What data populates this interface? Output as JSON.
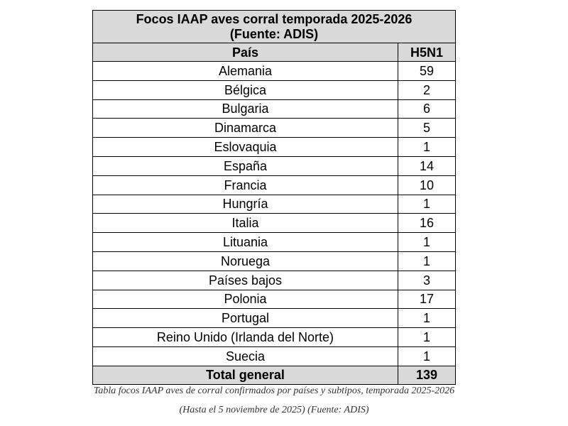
{
  "table": {
    "title_line1": "Focos IAAP aves corral temporada 2025-2026",
    "title_line2": "(Fuente: ADIS)",
    "header": {
      "country": "País",
      "subtype": "H5N1"
    },
    "rows": [
      {
        "country": "Alemania",
        "value": "59"
      },
      {
        "country": "Bélgica",
        "value": "2"
      },
      {
        "country": "Bulgaria",
        "value": "6"
      },
      {
        "country": "Dinamarca",
        "value": "5"
      },
      {
        "country": "Eslovaquia",
        "value": "1"
      },
      {
        "country": "España",
        "value": "14"
      },
      {
        "country": "Francia",
        "value": "10"
      },
      {
        "country": "Hungría",
        "value": "1"
      },
      {
        "country": "Italia",
        "value": "16"
      },
      {
        "country": "Lituania",
        "value": "1"
      },
      {
        "country": "Noruega",
        "value": "1"
      },
      {
        "country": "Países bajos",
        "value": "3"
      },
      {
        "country": "Polonia",
        "value": "17"
      },
      {
        "country": "Portugal",
        "value": "1"
      },
      {
        "country": "Reino Unido (Irlanda del Norte)",
        "value": "1"
      },
      {
        "country": "Suecia",
        "value": "1"
      }
    ],
    "total": {
      "label": "Total general",
      "value": "139"
    }
  },
  "caption": {
    "line1": "Tabla focos IAAP aves de corral confirmados por países y subtipos, temporada 2025-2026",
    "line2": "(Hasta el 5 noviembre de 2025) (Fuente: ADIS)"
  }
}
